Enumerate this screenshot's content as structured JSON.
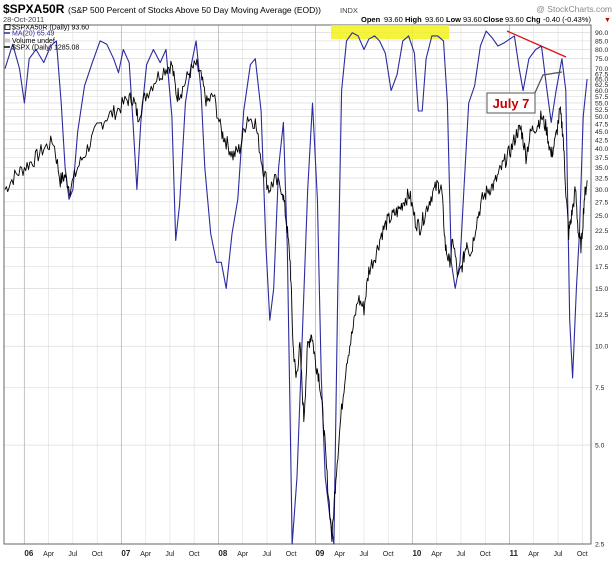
{
  "header": {
    "symbol": "$SPXA50R",
    "description": "(S&P 500 Percent of Stocks Above 50 Day Moving Average (EOD))",
    "exchange": "INDX",
    "date": "28-Oct-2011",
    "watermark": "@ StockCharts.com",
    "quote": {
      "open_label": "Open",
      "open": "93.60",
      "high_label": "High",
      "high": "93.60",
      "low_label": "Low",
      "low": "93.60",
      "close_label": "Close",
      "close": "93.60",
      "chg_label": "Chg",
      "chg": "-0.40 (-0.43%)",
      "down_glyph": "▼"
    }
  },
  "legend": [
    {
      "label": "$SPXA50R (Daily) 93.60",
      "color": "#000000",
      "kind": "box"
    },
    {
      "label": "MA(20) 65.49",
      "color": "#2b2b9f",
      "kind": "line"
    },
    {
      "label": "Volume undef",
      "color": "#999999",
      "kind": "box"
    },
    {
      "label": "$SPX (Daily) 1285.08",
      "color": "#000000",
      "kind": "line"
    }
  ],
  "annotation": {
    "label": "July 7",
    "color": "#cc0000",
    "trendline_color": "#e01010",
    "highlight_color": "#f2f21a"
  },
  "colors": {
    "ma_line": "#2b2b9f",
    "spx_line": "#000000",
    "grid": "#d4d4d4",
    "plot_border": "#666666"
  },
  "chart_data": {
    "type": "line",
    "yscale": "log",
    "ylim": [
      2.5,
      95
    ],
    "y_ticks": [
      2.5,
      5.0,
      7.5,
      10.0,
      12.5,
      15.0,
      17.5,
      20.0,
      22.5,
      25.0,
      27.5,
      30.0,
      32.5,
      35.0,
      37.5,
      40.0,
      42.5,
      45.0,
      47.5,
      50.0,
      52.5,
      55.0,
      57.5,
      60.0,
      62.5,
      65.0,
      67.5,
      70.0,
      75.0,
      80.0,
      85.0,
      90.0
    ],
    "y_tick_labels": [
      "2.5",
      "5.0",
      "7.5",
      "10.0",
      "12.5",
      "15.0",
      "17.5",
      "20.0",
      "22.5",
      "25.0",
      "27.5",
      "30.0",
      "32.5",
      "35.0",
      "37.5",
      "40.0",
      "42.5",
      "45.0",
      "47.5",
      "50.0",
      "52.5",
      "55.0",
      "57.5",
      "60.0",
      "62.5",
      "65.0",
      "67.5",
      "70.0",
      "75.0",
      "80.0",
      "85.0",
      "90.0"
    ],
    "x_start": "2005-10",
    "x_end": "2011-10",
    "x_ticks": [
      {
        "t": 2006.0,
        "label": "06",
        "major": true
      },
      {
        "t": 2006.25,
        "label": "Apr"
      },
      {
        "t": 2006.5,
        "label": "Jul"
      },
      {
        "t": 2006.75,
        "label": "Oct"
      },
      {
        "t": 2007.0,
        "label": "07",
        "major": true
      },
      {
        "t": 2007.25,
        "label": "Apr"
      },
      {
        "t": 2007.5,
        "label": "Jul"
      },
      {
        "t": 2007.75,
        "label": "Oct"
      },
      {
        "t": 2008.0,
        "label": "08",
        "major": true
      },
      {
        "t": 2008.25,
        "label": "Apr"
      },
      {
        "t": 2008.5,
        "label": "Jul"
      },
      {
        "t": 2008.75,
        "label": "Oct"
      },
      {
        "t": 2009.0,
        "label": "09",
        "major": true
      },
      {
        "t": 2009.25,
        "label": "Apr"
      },
      {
        "t": 2009.5,
        "label": "Jul"
      },
      {
        "t": 2009.75,
        "label": "Oct"
      },
      {
        "t": 2010.0,
        "label": "10",
        "major": true
      },
      {
        "t": 2010.25,
        "label": "Apr"
      },
      {
        "t": 2010.5,
        "label": "Jul"
      },
      {
        "t": 2010.75,
        "label": "Oct"
      },
      {
        "t": 2011.0,
        "label": "11",
        "major": true
      },
      {
        "t": 2011.25,
        "label": "Apr"
      },
      {
        "t": 2011.5,
        "label": "Jul"
      },
      {
        "t": 2011.75,
        "label": "Oct"
      }
    ],
    "series": [
      {
        "name": "MA(20)",
        "color": "#2b2b9f",
        "points": [
          [
            2005.8,
            70
          ],
          [
            2005.88,
            83
          ],
          [
            2005.95,
            70
          ],
          [
            2006.0,
            55
          ],
          [
            2006.05,
            75
          ],
          [
            2006.12,
            80
          ],
          [
            2006.2,
            73
          ],
          [
            2006.27,
            82
          ],
          [
            2006.33,
            85
          ],
          [
            2006.38,
            55
          ],
          [
            2006.42,
            35
          ],
          [
            2006.46,
            28
          ],
          [
            2006.5,
            30
          ],
          [
            2006.55,
            45
          ],
          [
            2006.62,
            62
          ],
          [
            2006.7,
            73
          ],
          [
            2006.78,
            85
          ],
          [
            2006.85,
            83
          ],
          [
            2006.92,
            75
          ],
          [
            2006.97,
            68
          ],
          [
            2007.02,
            80
          ],
          [
            2007.08,
            73
          ],
          [
            2007.12,
            48
          ],
          [
            2007.16,
            30
          ],
          [
            2007.2,
            48
          ],
          [
            2007.26,
            72
          ],
          [
            2007.33,
            80
          ],
          [
            2007.4,
            73
          ],
          [
            2007.46,
            80
          ],
          [
            2007.52,
            50
          ],
          [
            2007.56,
            21
          ],
          [
            2007.6,
            27
          ],
          [
            2007.66,
            55
          ],
          [
            2007.72,
            72
          ],
          [
            2007.77,
            85
          ],
          [
            2007.82,
            60
          ],
          [
            2007.86,
            35
          ],
          [
            2007.92,
            22
          ],
          [
            2007.98,
            18
          ],
          [
            2008.03,
            18
          ],
          [
            2008.08,
            15
          ],
          [
            2008.14,
            22
          ],
          [
            2008.2,
            28
          ],
          [
            2008.26,
            52
          ],
          [
            2008.33,
            72
          ],
          [
            2008.38,
            75
          ],
          [
            2008.44,
            52
          ],
          [
            2008.49,
            20
          ],
          [
            2008.53,
            12
          ],
          [
            2008.57,
            15
          ],
          [
            2008.62,
            35
          ],
          [
            2008.67,
            48
          ],
          [
            2008.71,
            20
          ],
          [
            2008.76,
            2.5
          ],
          [
            2008.81,
            4
          ],
          [
            2008.86,
            10
          ],
          [
            2008.92,
            30
          ],
          [
            2008.97,
            55
          ],
          [
            2009.02,
            28
          ],
          [
            2009.06,
            8
          ],
          [
            2009.1,
            4
          ],
          [
            2009.15,
            3
          ],
          [
            2009.19,
            2.5
          ],
          [
            2009.23,
            15
          ],
          [
            2009.27,
            60
          ],
          [
            2009.32,
            85
          ],
          [
            2009.38,
            90
          ],
          [
            2009.44,
            88
          ],
          [
            2009.5,
            80
          ],
          [
            2009.55,
            86
          ],
          [
            2009.61,
            88
          ],
          [
            2009.66,
            85
          ],
          [
            2009.72,
            78
          ],
          [
            2009.78,
            60
          ],
          [
            2009.84,
            67
          ],
          [
            2009.9,
            85
          ],
          [
            2009.96,
            88
          ],
          [
            2010.02,
            78
          ],
          [
            2010.06,
            52
          ],
          [
            2010.1,
            52
          ],
          [
            2010.14,
            75
          ],
          [
            2010.2,
            88
          ],
          [
            2010.26,
            88
          ],
          [
            2010.32,
            85
          ],
          [
            2010.36,
            55
          ],
          [
            2010.4,
            18
          ],
          [
            2010.44,
            15
          ],
          [
            2010.49,
            18
          ],
          [
            2010.53,
            30
          ],
          [
            2010.58,
            55
          ],
          [
            2010.64,
            62
          ],
          [
            2010.7,
            82
          ],
          [
            2010.76,
            91
          ],
          [
            2010.82,
            87
          ],
          [
            2010.88,
            82
          ],
          [
            2010.95,
            84
          ],
          [
            2011.0,
            86
          ],
          [
            2011.05,
            88
          ],
          [
            2011.1,
            70
          ],
          [
            2011.14,
            60
          ],
          [
            2011.2,
            75
          ],
          [
            2011.27,
            80
          ],
          [
            2011.33,
            82
          ],
          [
            2011.38,
            62
          ],
          [
            2011.43,
            48
          ],
          [
            2011.48,
            60
          ],
          [
            2011.54,
            75
          ],
          [
            2011.58,
            60
          ],
          [
            2011.62,
            12
          ],
          [
            2011.65,
            8
          ],
          [
            2011.69,
            15
          ],
          [
            2011.72,
            22
          ],
          [
            2011.76,
            50
          ],
          [
            2011.8,
            65
          ]
        ]
      },
      {
        "name": "$SPX",
        "color": "#000000",
        "points": [
          [
            2005.8,
            30
          ],
          [
            2005.9,
            33
          ],
          [
            2006.0,
            35
          ],
          [
            2006.1,
            37
          ],
          [
            2006.2,
            40
          ],
          [
            2006.3,
            42
          ],
          [
            2006.37,
            32
          ],
          [
            2006.42,
            33
          ],
          [
            2006.47,
            30
          ],
          [
            2006.55,
            35
          ],
          [
            2006.65,
            40
          ],
          [
            2006.75,
            46
          ],
          [
            2006.85,
            50
          ],
          [
            2006.95,
            52
          ],
          [
            2007.05,
            56
          ],
          [
            2007.12,
            57
          ],
          [
            2007.17,
            50
          ],
          [
            2007.25,
            58
          ],
          [
            2007.35,
            65
          ],
          [
            2007.45,
            70
          ],
          [
            2007.52,
            72
          ],
          [
            2007.57,
            58
          ],
          [
            2007.62,
            60
          ],
          [
            2007.7,
            68
          ],
          [
            2007.77,
            72
          ],
          [
            2007.82,
            66
          ],
          [
            2007.88,
            55
          ],
          [
            2007.95,
            58
          ],
          [
            2008.03,
            45
          ],
          [
            2008.08,
            42
          ],
          [
            2008.15,
            38
          ],
          [
            2008.22,
            40
          ],
          [
            2008.3,
            50
          ],
          [
            2008.38,
            48
          ],
          [
            2008.45,
            36
          ],
          [
            2008.52,
            30
          ],
          [
            2008.58,
            32
          ],
          [
            2008.66,
            30
          ],
          [
            2008.7,
            24
          ],
          [
            2008.74,
            18
          ],
          [
            2008.77,
            10
          ],
          [
            2008.8,
            8
          ],
          [
            2008.84,
            10
          ],
          [
            2008.88,
            6
          ],
          [
            2008.92,
            10
          ],
          [
            2008.96,
            11
          ],
          [
            2009.0,
            9
          ],
          [
            2009.04,
            8
          ],
          [
            2009.08,
            6
          ],
          [
            2009.12,
            4
          ],
          [
            2009.17,
            2.6
          ],
          [
            2009.21,
            4
          ],
          [
            2009.26,
            6
          ],
          [
            2009.32,
            9
          ],
          [
            2009.38,
            11
          ],
          [
            2009.44,
            14
          ],
          [
            2009.5,
            13
          ],
          [
            2009.55,
            17
          ],
          [
            2009.62,
            19
          ],
          [
            2009.68,
            22
          ],
          [
            2009.74,
            24
          ],
          [
            2009.8,
            25
          ],
          [
            2009.86,
            26
          ],
          [
            2009.92,
            28
          ],
          [
            2009.97,
            29
          ],
          [
            2010.03,
            24
          ],
          [
            2010.08,
            23
          ],
          [
            2010.14,
            26
          ],
          [
            2010.2,
            29
          ],
          [
            2010.26,
            31
          ],
          [
            2010.3,
            30
          ],
          [
            2010.34,
            20
          ],
          [
            2010.38,
            18
          ],
          [
            2010.42,
            21
          ],
          [
            2010.47,
            16
          ],
          [
            2010.52,
            18
          ],
          [
            2010.56,
            21
          ],
          [
            2010.6,
            19
          ],
          [
            2010.66,
            24
          ],
          [
            2010.72,
            28
          ],
          [
            2010.78,
            30
          ],
          [
            2010.84,
            31
          ],
          [
            2010.9,
            34
          ],
          [
            2010.96,
            37
          ],
          [
            2011.02,
            40
          ],
          [
            2011.08,
            45
          ],
          [
            2011.12,
            46
          ],
          [
            2011.17,
            38
          ],
          [
            2011.22,
            45
          ],
          [
            2011.28,
            47
          ],
          [
            2011.33,
            50
          ],
          [
            2011.38,
            46
          ],
          [
            2011.43,
            38
          ],
          [
            2011.47,
            42
          ],
          [
            2011.52,
            52
          ],
          [
            2011.55,
            45
          ],
          [
            2011.58,
            30
          ],
          [
            2011.61,
            22
          ],
          [
            2011.64,
            25
          ],
          [
            2011.68,
            30
          ],
          [
            2011.71,
            22
          ],
          [
            2011.74,
            20
          ],
          [
            2011.77,
            28
          ],
          [
            2011.8,
            32
          ]
        ]
      }
    ]
  }
}
